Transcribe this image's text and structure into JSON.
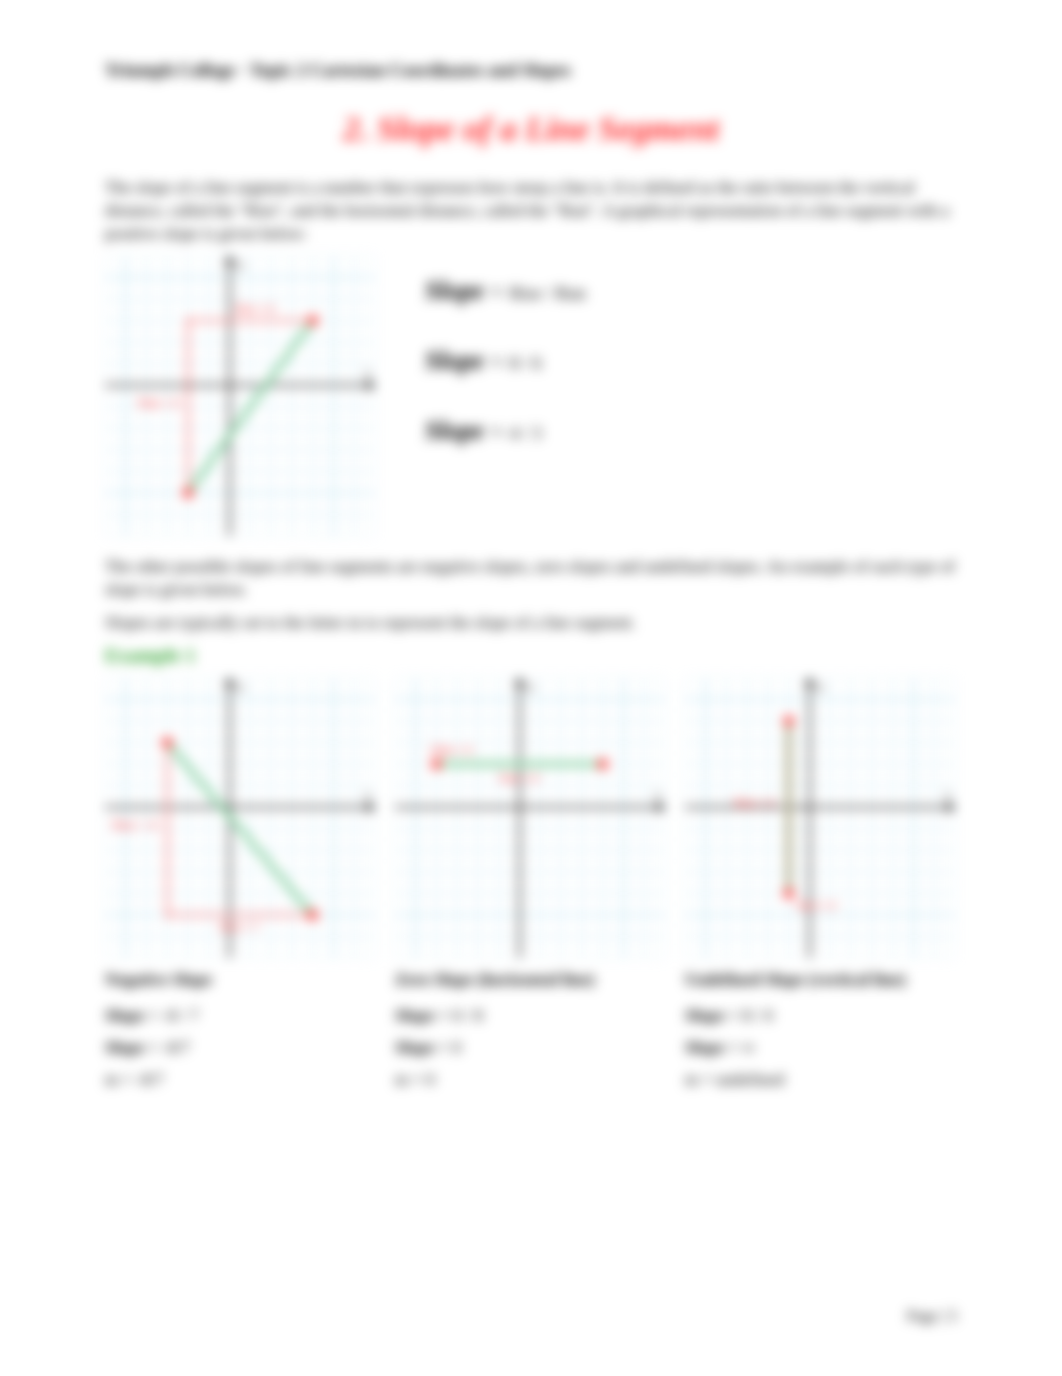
{
  "header": "Triumph College · Topic 2 Cartesian Coordinates and Slopes",
  "title": "2. Slope of a Line Segment",
  "intro": "The slope of a line segment is a number that expresses how steep a line is. It is defined as the ratio between the vertical distance, called the \"Rise\", and the horizontal distance, called the \"Run\". A graphical representation of a line segment with a positive slope is given below:",
  "formulas": {
    "f1_lhs": "Slope",
    "f1_eq": "=",
    "f1_rhs": "Rise / Run",
    "f2_lhs": "Slope",
    "f2_eq": "=",
    "f2_rhs": "8 / 6",
    "f3_lhs": "Slope",
    "f3_eq": "=",
    "f3_rhs": "4 / 3"
  },
  "para2": "The other possible slopes of line segments are negative slopes, zero slopes and undefined slopes. An example of each type of slope is given below.",
  "para3": "Slopes are typically set to the letter m to represent the slope of a line segment.",
  "example_label": "Example 1",
  "charts": {
    "main": {
      "grid_color": "#bfe6f5",
      "axis_color": "#000000",
      "line_color": "#8fd3a8",
      "dash_color": "#ff2a2a",
      "point_color": "#ff2a2a",
      "p1": [
        -2,
        -5
      ],
      "p2": [
        4,
        3
      ],
      "rise_label": "Rise = 8",
      "run_label": "Run = 6",
      "x_lbl": "x",
      "y_lbl": "y"
    },
    "neg": {
      "line_color": "#8fd3a8",
      "p1": [
        -3,
        3
      ],
      "high": [
        -3,
        3
      ],
      "low": [
        4,
        -5
      ],
      "rise_label": "Rise = -8",
      "run_label": "Run = 7",
      "caption": "Negative Slope",
      "slope_a_lhs": "Slope",
      "slope_a_rhs": "= -8 / 7",
      "slope_b_lhs": "Slope",
      "slope_b_rhs": "= -8/7",
      "m_line": "m = -8/7"
    },
    "zero": {
      "line_color": "#8fd3a8",
      "p1": [
        -4,
        2
      ],
      "p2": [
        4,
        2
      ],
      "rise_label": "Rise = 0",
      "run_label": "Run = 8",
      "caption": "Zero Slope (horizontal line)",
      "slope_a_lhs": "Slope",
      "slope_a_rhs": "= 0 / 8",
      "slope_b_lhs": "Slope",
      "slope_b_rhs": "= 0",
      "m_line": "m = 0"
    },
    "undef": {
      "line_color": "#8fd3a8",
      "p1": [
        -1,
        -4
      ],
      "p2": [
        -1,
        4
      ],
      "rise_label": "Rise = 8",
      "run_label": "Run = 0",
      "caption": "Undefined Slope (vertical line)",
      "slope_a_lhs": "Slope",
      "slope_a_rhs": "= 8 / 0",
      "slope_b_lhs": "Slope",
      "slope_b_rhs": "= ∞",
      "m_line": "m = undefined"
    }
  },
  "footer": "Page | 5"
}
